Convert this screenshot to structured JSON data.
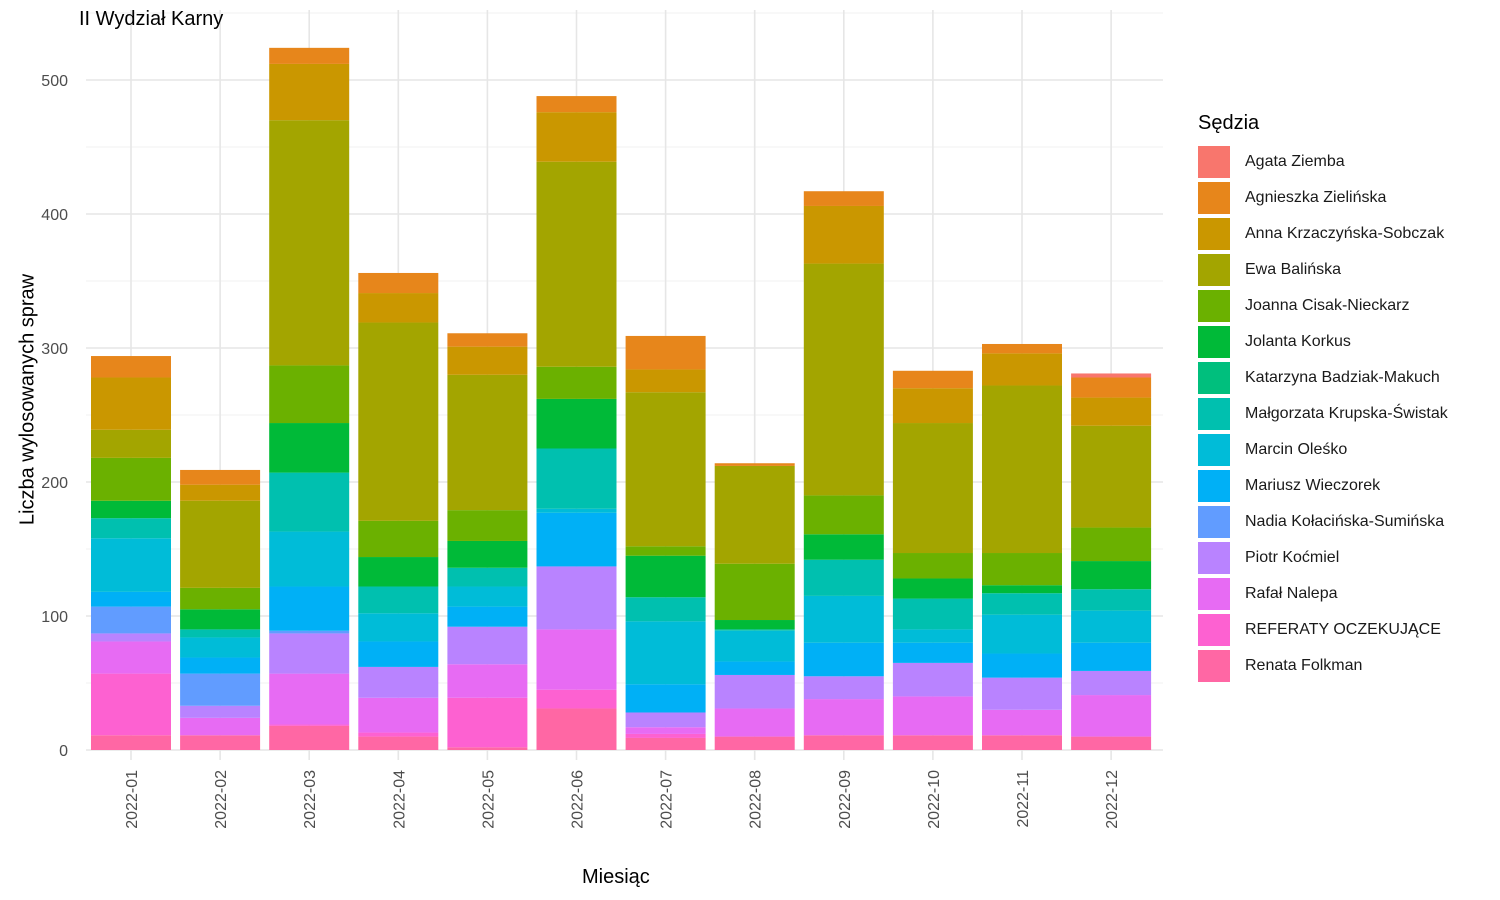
{
  "chart_data": {
    "type": "bar",
    "stacked": true,
    "title": "II Wydział Karny",
    "xlabel": "Miesiąc",
    "ylabel": "Liczba wylosowanych spraw",
    "ylim": [
      0,
      540
    ],
    "yticks": [
      0,
      100,
      200,
      300,
      400,
      500
    ],
    "grid": true,
    "legend_title": "Sędzia",
    "legend_position": "right",
    "categories": [
      "2022-01",
      "2022-02",
      "2022-03",
      "2022-04",
      "2022-05",
      "2022-06",
      "2022-07",
      "2022-08",
      "2022-09",
      "2022-10",
      "2022-11",
      "2022-12"
    ],
    "series": [
      {
        "name": "Agata Ziemba",
        "color": "#F8766D",
        "values": [
          0,
          0,
          0,
          0,
          0,
          0,
          0,
          0,
          0,
          0,
          0,
          3
        ]
      },
      {
        "name": "Agnieszka Zielińska",
        "color": "#E7861B",
        "values": [
          16,
          11,
          12,
          15,
          10,
          12,
          25,
          2,
          11,
          13,
          7,
          15
        ]
      },
      {
        "name": "Anna Krzaczyńska-Sobczak",
        "color": "#CA9700",
        "values": [
          39,
          12,
          42,
          22,
          21,
          37,
          17,
          0,
          43,
          26,
          24,
          21
        ]
      },
      {
        "name": "Ewa Balińska",
        "color": "#A3A500",
        "values": [
          21,
          65,
          183,
          148,
          101,
          153,
          115,
          73,
          173,
          97,
          125,
          76
        ]
      },
      {
        "name": "Joanna Cisak-Nieckarz",
        "color": "#6BB100",
        "values": [
          32,
          16,
          43,
          27,
          23,
          24,
          7,
          42,
          29,
          19,
          24,
          25
        ]
      },
      {
        "name": "Jolanta Korkus",
        "color": "#00BA38",
        "values": [
          13,
          15,
          37,
          22,
          20,
          37,
          31,
          7,
          19,
          15,
          6,
          21
        ]
      },
      {
        "name": "Katarzyna Badziak-Makuch",
        "color": "#00BF7D",
        "values": [
          0,
          0,
          0,
          0,
          0,
          0,
          0,
          0,
          0,
          0,
          0,
          0
        ]
      },
      {
        "name": "Małgorzata Krupska-Świstak",
        "color": "#00C0AF",
        "values": [
          15,
          6,
          44,
          20,
          14,
          45,
          18,
          1,
          27,
          23,
          16,
          16
        ]
      },
      {
        "name": "Marcin Oleśko",
        "color": "#00BCD8",
        "values": [
          40,
          15,
          41,
          21,
          15,
          3,
          47,
          23,
          35,
          10,
          29,
          24
        ]
      },
      {
        "name": "Mariusz Wieczorek",
        "color": "#00B0F6",
        "values": [
          11,
          12,
          33,
          19,
          15,
          40,
          21,
          10,
          25,
          15,
          18,
          21
        ]
      },
      {
        "name": "Nadia Kołacińska-Sumińska",
        "color": "#619CFF",
        "values": [
          20,
          24,
          2,
          0,
          0,
          0,
          0,
          0,
          0,
          0,
          0,
          0
        ]
      },
      {
        "name": "Piotr Koćmiel",
        "color": "#B983FF",
        "values": [
          6,
          9,
          30,
          23,
          28,
          47,
          11,
          25,
          17,
          25,
          24,
          18
        ]
      },
      {
        "name": "Rafał Nalepa",
        "color": "#E76BF3",
        "values": [
          24,
          13,
          38,
          26,
          25,
          45,
          5,
          21,
          27,
          29,
          19,
          31
        ]
      },
      {
        "name": "REFERATY OCZEKUJĄCE",
        "color": "#FD61D1",
        "values": [
          46,
          0,
          1,
          3,
          37,
          14,
          3,
          0,
          0,
          0,
          0,
          0
        ]
      },
      {
        "name": "Renata Folkman",
        "color": "#FF67A4",
        "values": [
          11,
          11,
          18,
          10,
          2,
          31,
          9,
          10,
          11,
          11,
          11,
          10
        ]
      }
    ]
  }
}
